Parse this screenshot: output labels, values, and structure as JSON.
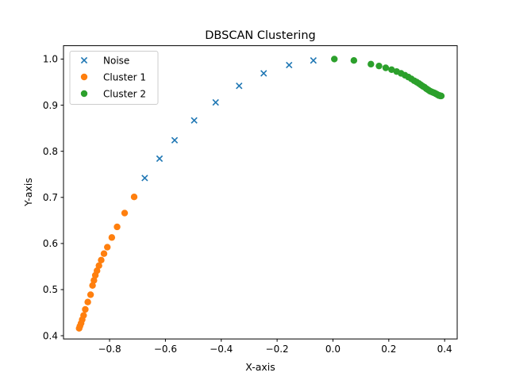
{
  "chart_data": {
    "type": "scatter",
    "title": "DBSCAN Clustering",
    "xlabel": "X-axis",
    "ylabel": "Y-axis",
    "xlim": [
      -0.965,
      0.445
    ],
    "ylim": [
      0.393,
      1.029
    ],
    "xticks": [
      -0.8,
      -0.6,
      -0.4,
      -0.2,
      0.0,
      0.2,
      0.4
    ],
    "xtick_labels": [
      "−0.8",
      "−0.6",
      "−0.4",
      "−0.2",
      "0.0",
      "0.2",
      "0.4"
    ],
    "yticks": [
      0.4,
      0.5,
      0.6,
      0.7,
      0.8,
      0.9,
      1.0
    ],
    "ytick_labels": [
      "0.4",
      "0.5",
      "0.6",
      "0.7",
      "0.8",
      "0.9",
      "1.0"
    ],
    "grid": false,
    "legend_position": "top-left",
    "series": [
      {
        "name": "Noise",
        "marker": "x",
        "color": "#1f77b4",
        "x": [
          -0.674,
          -0.621,
          -0.567,
          -0.497,
          -0.42,
          -0.336,
          -0.248,
          -0.157,
          -0.07
        ],
        "y": [
          0.742,
          0.784,
          0.824,
          0.867,
          0.906,
          0.942,
          0.969,
          0.987,
          0.997
        ]
      },
      {
        "name": "Cluster 1",
        "marker": "o",
        "color": "#ff7f0e",
        "x": [
          -0.712,
          -0.746,
          -0.773,
          -0.792,
          -0.808,
          -0.82,
          -0.83,
          -0.838,
          -0.845,
          -0.851,
          -0.856,
          -0.861,
          -0.868,
          -0.878,
          -0.887,
          -0.893,
          -0.898,
          -0.902,
          -0.906,
          -0.909
        ],
        "y": [
          0.701,
          0.666,
          0.636,
          0.613,
          0.592,
          0.578,
          0.564,
          0.552,
          0.541,
          0.531,
          0.52,
          0.509,
          0.489,
          0.473,
          0.457,
          0.444,
          0.435,
          0.427,
          0.421,
          0.416
        ]
      },
      {
        "name": "Cluster 2",
        "marker": "o",
        "color": "#2ca02c",
        "x": [
          0.005,
          0.075,
          0.136,
          0.165,
          0.189,
          0.21,
          0.228,
          0.244,
          0.258,
          0.27,
          0.281,
          0.291,
          0.3,
          0.308,
          0.315,
          0.322,
          0.328,
          0.334,
          0.339,
          0.344,
          0.349,
          0.353,
          0.357,
          0.361,
          0.365,
          0.368,
          0.371,
          0.374,
          0.377,
          0.379,
          0.382,
          0.384,
          0.386,
          0.388
        ],
        "y": [
          1.0,
          0.997,
          0.989,
          0.985,
          0.981,
          0.977,
          0.973,
          0.969,
          0.965,
          0.961,
          0.957,
          0.953,
          0.95,
          0.947,
          0.944,
          0.941,
          0.939,
          0.936,
          0.934,
          0.932,
          0.93,
          0.929,
          0.928,
          0.927,
          0.926,
          0.925,
          0.924,
          0.923,
          0.922,
          0.921,
          0.921,
          0.92,
          0.92,
          0.92
        ]
      }
    ]
  }
}
